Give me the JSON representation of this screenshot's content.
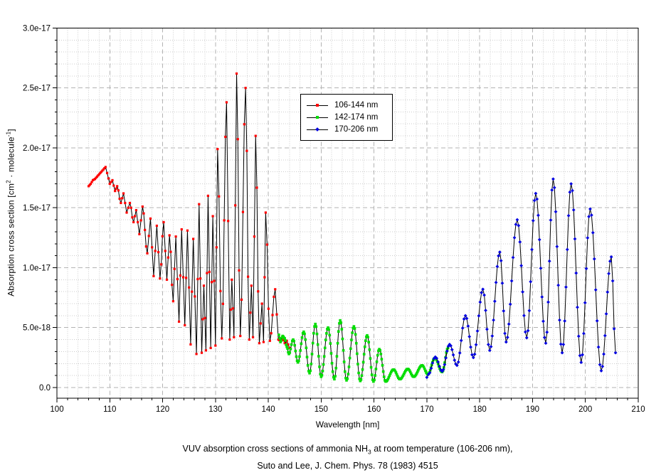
{
  "caption": {
    "line1_pre": "VUV absorption cross sections of ammonia NH",
    "line1_sub": "3",
    "line1_post": " at room temperature (106-206 nm),",
    "line2": "Suto and Lee, J. Chem. Phys. 78 (1983) 4515"
  },
  "chart_data": {
    "type": "line",
    "title": "",
    "xlabel": "Wavelength [nm]",
    "ylabel_pre": "Absorption cross section [cm",
    "ylabel_sup1": "2",
    "ylabel_mid": " · molecule",
    "ylabel_sup2": "-1",
    "ylabel_post": "]",
    "xlim": [
      100,
      210
    ],
    "ylim_e18": [
      -0.89,
      30
    ],
    "x_major_ticks": [
      100,
      110,
      120,
      130,
      140,
      150,
      160,
      170,
      180,
      190,
      200,
      210
    ],
    "x_minor_step_nm": 2,
    "y_major_ticks": [
      {
        "v": 0,
        "label": "0.0"
      },
      {
        "v": 5,
        "label": "5.0e-18"
      },
      {
        "v": 10,
        "label": "1.0e-17"
      },
      {
        "v": 15,
        "label": "1.5e-17"
      },
      {
        "v": 20,
        "label": "2.0e-17"
      },
      {
        "v": 25,
        "label": "2.5e-17"
      },
      {
        "v": 30,
        "label": "3.0e-17"
      }
    ],
    "y_minor_step_e18": 1,
    "grid": {
      "major_color": "#b3b3b3",
      "minor_color": "#cccccc"
    },
    "legend_position": "upper-center",
    "units_note": "y keypoint values are in 1e-18 cm2/molecule",
    "series": [
      {
        "name": "106-144 nm",
        "color": "#ff0000",
        "marker": "square",
        "marker_size": 3.2,
        "sample_step_nm": 0.25,
        "keypoints_nm_e18": [
          [
            106.0,
            16.8
          ],
          [
            106.4,
            17.0
          ],
          [
            106.8,
            17.3
          ],
          [
            107.2,
            17.4
          ],
          [
            107.6,
            17.6
          ],
          [
            108.0,
            17.8
          ],
          [
            108.4,
            18.0
          ],
          [
            108.8,
            18.2
          ],
          [
            109.2,
            18.4
          ],
          [
            109.5,
            17.9
          ],
          [
            110.0,
            17.0
          ],
          [
            110.5,
            17.3
          ],
          [
            111.0,
            16.4
          ],
          [
            111.4,
            16.8
          ],
          [
            112.1,
            15.4
          ],
          [
            112.6,
            16.2
          ],
          [
            113.2,
            14.6
          ],
          [
            113.8,
            15.4
          ],
          [
            114.5,
            13.8
          ],
          [
            115.0,
            14.8
          ],
          [
            115.6,
            12.8
          ],
          [
            116.2,
            15.1
          ],
          [
            117.1,
            11.2
          ],
          [
            117.7,
            14.1
          ],
          [
            118.3,
            9.3
          ],
          [
            118.9,
            13.5
          ],
          [
            119.5,
            9.1
          ],
          [
            120.2,
            13.8
          ],
          [
            120.8,
            9.0
          ],
          [
            121.3,
            12.7
          ],
          [
            122.0,
            7.2
          ],
          [
            122.5,
            12.6
          ],
          [
            123.1,
            5.5
          ],
          [
            123.6,
            13.2
          ],
          [
            124.2,
            5.2
          ],
          [
            124.7,
            13.1
          ],
          [
            125.3,
            3.6
          ],
          [
            125.8,
            12.4
          ],
          [
            126.4,
            2.8
          ],
          [
            126.9,
            15.3
          ],
          [
            127.4,
            2.9
          ],
          [
            127.8,
            8.5
          ],
          [
            128.2,
            3.1
          ],
          [
            128.6,
            16.0
          ],
          [
            129.1,
            3.3
          ],
          [
            129.5,
            14.3
          ],
          [
            130.0,
            3.5
          ],
          [
            130.4,
            19.9
          ],
          [
            131.2,
            4.1
          ],
          [
            132.1,
            23.8
          ],
          [
            132.7,
            4.0
          ],
          [
            133.1,
            9.0
          ],
          [
            133.5,
            4.2
          ],
          [
            134.0,
            26.2
          ],
          [
            134.7,
            4.3
          ],
          [
            135.7,
            25.0
          ],
          [
            136.4,
            4.0
          ],
          [
            136.8,
            8.5
          ],
          [
            137.1,
            4.2
          ],
          [
            137.6,
            21.0
          ],
          [
            138.3,
            3.7
          ],
          [
            138.8,
            7.0
          ],
          [
            139.1,
            3.8
          ],
          [
            139.5,
            14.6
          ],
          [
            140.3,
            3.9
          ],
          [
            141.3,
            8.2
          ],
          [
            141.9,
            4.0
          ],
          [
            142.3,
            3.9
          ],
          [
            142.7,
            4.2
          ],
          [
            143.1,
            3.7
          ],
          [
            143.5,
            3.9
          ],
          [
            144.0,
            3.3
          ]
        ]
      },
      {
        "name": "142-174 nm",
        "color": "#00dd00",
        "marker": "square",
        "marker_size": 3.6,
        "sample_step_nm": 0.15,
        "keypoints_nm_e18": [
          [
            142.0,
            4.4
          ],
          [
            142.3,
            3.8
          ],
          [
            142.7,
            4.3
          ],
          [
            143.1,
            4.1
          ],
          [
            143.5,
            3.4
          ],
          [
            143.9,
            2.8
          ],
          [
            144.7,
            4.0
          ],
          [
            145.6,
            2.1
          ],
          [
            146.7,
            4.65
          ],
          [
            147.8,
            1.2
          ],
          [
            148.9,
            5.3
          ],
          [
            150.0,
            0.9
          ],
          [
            151.3,
            5.0
          ],
          [
            152.5,
            0.7
          ],
          [
            153.6,
            5.6
          ],
          [
            154.8,
            0.6
          ],
          [
            156.2,
            5.1
          ],
          [
            157.4,
            0.55
          ],
          [
            158.7,
            4.35
          ],
          [
            159.9,
            0.5
          ],
          [
            161.0,
            3.2
          ],
          [
            162.2,
            0.5
          ],
          [
            163.7,
            1.5
          ],
          [
            164.9,
            0.7
          ],
          [
            166.4,
            1.55
          ],
          [
            167.5,
            0.9
          ],
          [
            169.1,
            1.85
          ],
          [
            170.2,
            1.1
          ],
          [
            171.5,
            2.45
          ],
          [
            172.9,
            1.3
          ],
          [
            174.0,
            3.3
          ]
        ]
      },
      {
        "name": "170-206 nm",
        "color": "#0000e0",
        "marker": "diamond",
        "marker_size": 3.4,
        "sample_step_nm": 0.25,
        "keypoints_nm_e18": [
          [
            170.0,
            0.85
          ],
          [
            170.3,
            1.1
          ],
          [
            171.6,
            2.55
          ],
          [
            172.9,
            1.35
          ],
          [
            174.3,
            3.6
          ],
          [
            175.7,
            1.85
          ],
          [
            177.3,
            6.0
          ],
          [
            178.8,
            2.5
          ],
          [
            180.6,
            8.2
          ],
          [
            181.9,
            3.1
          ],
          [
            183.8,
            11.3
          ],
          [
            185.0,
            3.8
          ],
          [
            187.1,
            14.0
          ],
          [
            188.9,
            4.15
          ],
          [
            190.6,
            16.2
          ],
          [
            192.5,
            3.7
          ],
          [
            193.9,
            17.4
          ],
          [
            195.6,
            2.9
          ],
          [
            197.3,
            17.0
          ],
          [
            199.2,
            2.1
          ],
          [
            200.9,
            14.9
          ],
          [
            203.0,
            1.4
          ],
          [
            204.9,
            10.9
          ],
          [
            205.7,
            2.9
          ]
        ]
      }
    ]
  }
}
